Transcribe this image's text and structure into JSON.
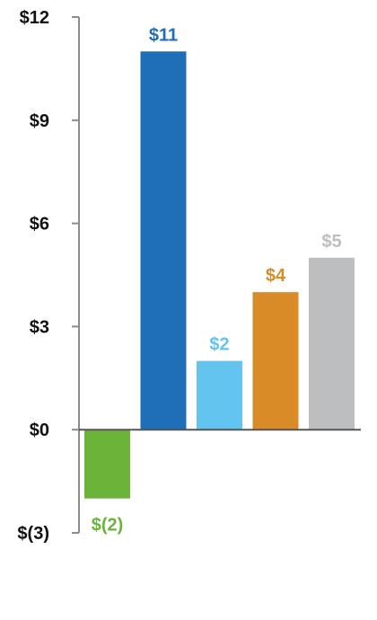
{
  "chart_data": {
    "type": "bar",
    "title": "",
    "xlabel": "",
    "ylabel": "",
    "categories": [
      "",
      "",
      "",
      "",
      ""
    ],
    "values": [
      -2,
      11,
      2,
      4,
      5
    ],
    "data_labels": [
      "$(2)",
      "$11",
      "$2",
      "$4",
      "$5"
    ],
    "colors": [
      "#6cb33a",
      "#1e6fb8",
      "#62c4ef",
      "#d98b27",
      "#bdbec0"
    ],
    "ylim": [
      -3,
      12
    ],
    "yticks": [
      12,
      9,
      6,
      3,
      0,
      -3
    ],
    "ytick_labels": [
      "$12",
      "$9",
      "$6",
      "$3",
      "$0",
      "$(3)"
    ],
    "grid": false,
    "legend": "none"
  }
}
